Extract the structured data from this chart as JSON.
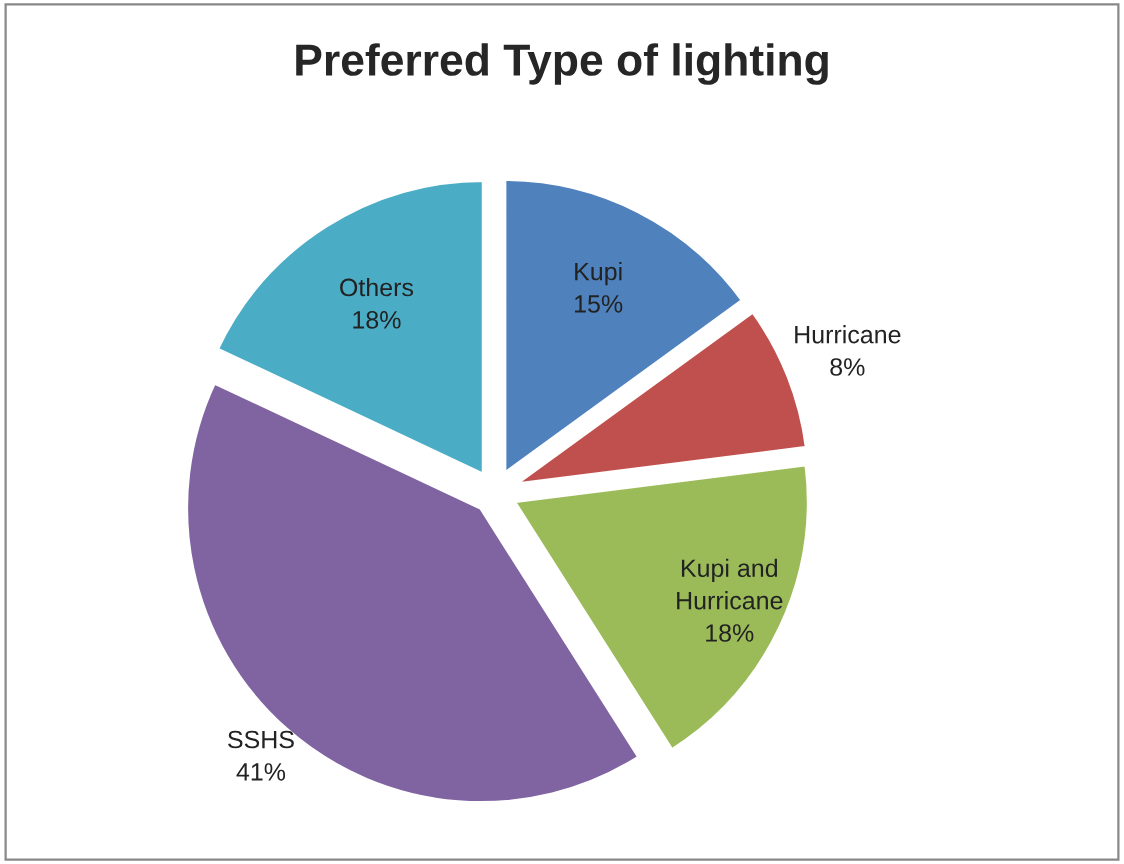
{
  "chart_data": {
    "type": "pie",
    "title": "Preferred Type of lighting",
    "categories": [
      "Kupi",
      "Hurricane",
      "Kupi and Hurricane",
      "SSHS",
      "Others"
    ],
    "values": [
      15,
      8,
      18,
      41,
      18
    ],
    "value_labels": [
      "15%",
      "8%",
      "18%",
      "41%",
      "18%"
    ],
    "colors": [
      "#4f81bd",
      "#c0504d",
      "#9bbb59",
      "#8064a2",
      "#4bacc6"
    ],
    "legend": false
  }
}
